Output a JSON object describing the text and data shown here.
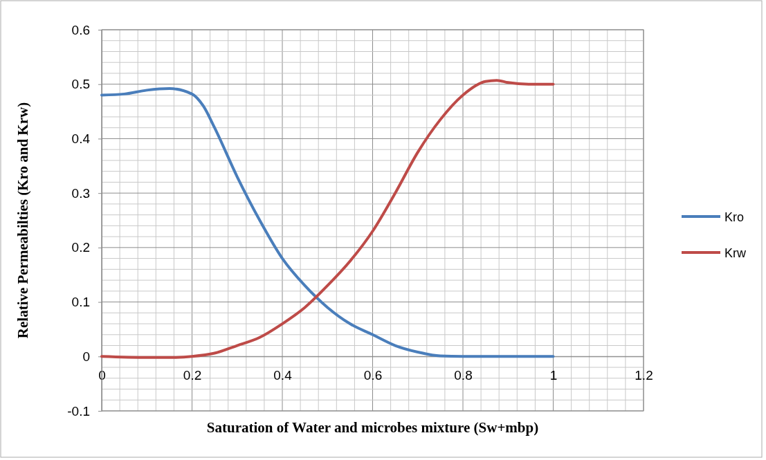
{
  "chart_data": {
    "type": "line",
    "xlabel": "Saturation of Water and microbes mixture (Sw+mbp)",
    "ylabel": "Relative Permeabilties (Kro and Krw)",
    "xlim": [
      0,
      1.2
    ],
    "xticks": [
      0,
      0.2,
      0.4,
      0.6,
      0.8,
      1,
      1.2
    ],
    "ylim": [
      -0.1,
      0.6
    ],
    "yticks": [
      -0.1,
      0,
      0.1,
      0.2,
      0.3,
      0.4,
      0.5,
      0.6
    ],
    "grid": true,
    "legend": "right",
    "marker": "none",
    "line_style": "solid",
    "series": [
      {
        "name": "Kro",
        "color": "#4a7ebb",
        "x": [
          0,
          0.05,
          0.1,
          0.15,
          0.2,
          0.225,
          0.25,
          0.3,
          0.35,
          0.4,
          0.45,
          0.5,
          0.55,
          0.6,
          0.65,
          0.7,
          0.75,
          0.8,
          0.9,
          1
        ],
        "values": [
          0.48,
          0.482,
          0.489,
          0.492,
          0.482,
          0.46,
          0.42,
          0.33,
          0.25,
          0.18,
          0.13,
          0.09,
          0.06,
          0.04,
          0.02,
          0.008,
          0.001,
          0,
          0,
          0
        ]
      },
      {
        "name": "Krw",
        "color": "#be4b48",
        "x": [
          0,
          0.1,
          0.15,
          0.2,
          0.25,
          0.3,
          0.35,
          0.4,
          0.45,
          0.5,
          0.55,
          0.6,
          0.65,
          0.7,
          0.75,
          0.8,
          0.85,
          0.875,
          0.9,
          0.95,
          1
        ],
        "values": [
          0,
          -0.002,
          -0.002,
          0,
          0.006,
          0.02,
          0.035,
          0.06,
          0.09,
          0.13,
          0.175,
          0.23,
          0.3,
          0.375,
          0.435,
          0.48,
          0.505,
          0.507,
          0.503,
          0.5,
          0.5
        ]
      }
    ]
  }
}
